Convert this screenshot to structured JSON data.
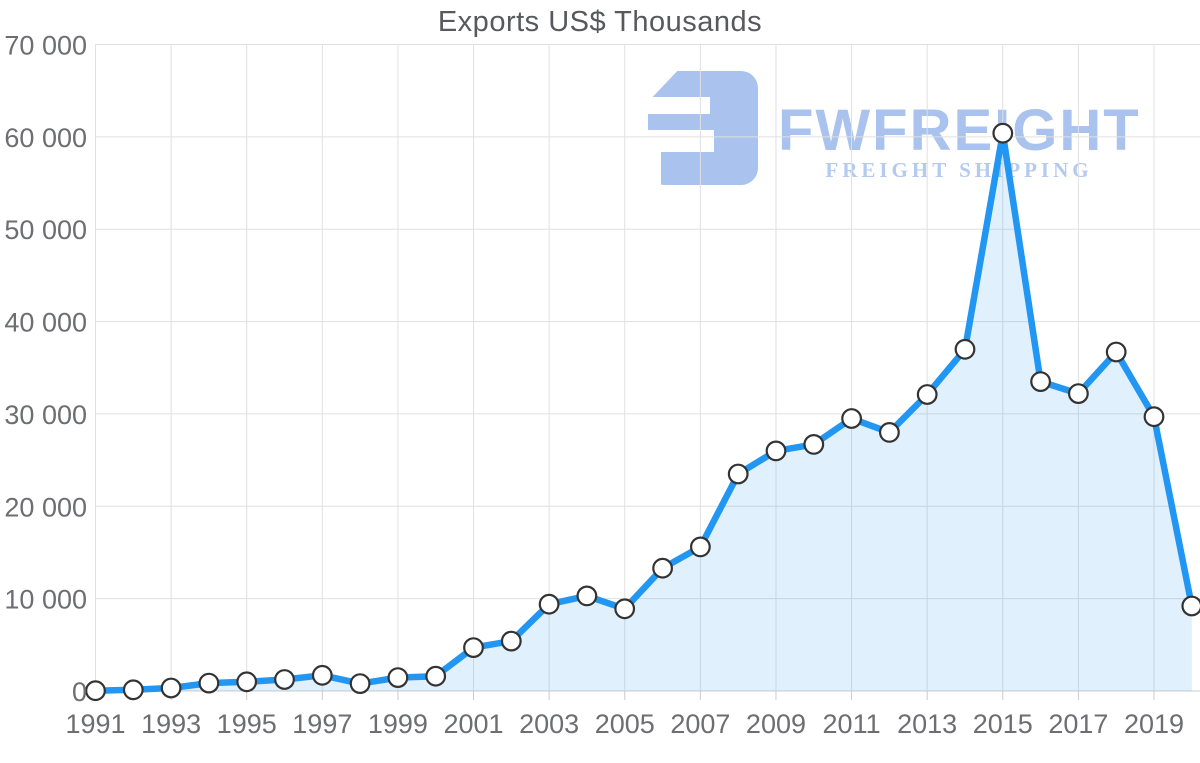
{
  "title": "Exports US$ Thousands",
  "watermark": {
    "brand": "FWFREIGHT",
    "tagline": "FREIGHT SHIPPING",
    "color": "#a9c2ee"
  },
  "chart_data": {
    "type": "area",
    "title": "Exports US$ Thousands",
    "xlabel": "",
    "ylabel": "",
    "x": [
      1991,
      1992,
      1993,
      1994,
      1995,
      1996,
      1997,
      1998,
      1999,
      2000,
      2001,
      2002,
      2003,
      2004,
      2005,
      2006,
      2007,
      2008,
      2009,
      2010,
      2011,
      2012,
      2013,
      2014,
      2015,
      2016,
      2017,
      2018,
      2019,
      2020
    ],
    "values": [
      30,
      130,
      330,
      850,
      1000,
      1250,
      1700,
      800,
      1450,
      1600,
      4700,
      5400,
      9400,
      10300,
      8900,
      13300,
      15600,
      23500,
      26000,
      26700,
      29500,
      28000,
      32100,
      37000,
      60400,
      33500,
      32200,
      36700,
      29700,
      9200
    ],
    "ylim": [
      0,
      70000
    ],
    "y_ticks": [
      0,
      10000,
      20000,
      30000,
      40000,
      50000,
      60000,
      70000
    ],
    "y_tick_labels": [
      "0",
      "10 000",
      "20 000",
      "30 000",
      "40 000",
      "50 000",
      "60 000",
      "70 000"
    ],
    "x_tick_years": [
      1991,
      1993,
      1995,
      1997,
      1999,
      2001,
      2003,
      2005,
      2007,
      2009,
      2011,
      2013,
      2015,
      2017,
      2019
    ],
    "x_tick_labels": [
      "1991",
      "1993",
      "1995",
      "1997",
      "1999",
      "2001",
      "2003",
      "2005",
      "2007",
      "2009",
      "2011",
      "2013",
      "2015",
      "2017",
      "2019"
    ],
    "grid": true,
    "legend": false,
    "marker": "circle",
    "colors": {
      "line": "#2196f3",
      "fill": "#2196f3",
      "fill_opacity": "0.14",
      "marker_fill": "#ffffff",
      "marker_stroke": "#333333",
      "grid": "#e0e0e0",
      "baseline": "#cccccc",
      "tick_label": "#6d6e71",
      "title": "#58595c"
    }
  }
}
